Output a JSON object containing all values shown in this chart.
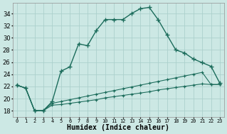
{
  "xlabel": "Humidex (Indice chaleur)",
  "background_color": "#cce8e4",
  "grid_color": "#aacfca",
  "line_color": "#1a6b5a",
  "x_ticks": [
    0,
    1,
    2,
    3,
    4,
    5,
    6,
    7,
    8,
    9,
    10,
    11,
    12,
    13,
    14,
    15,
    16,
    17,
    18,
    19,
    20,
    21,
    22,
    23
  ],
  "y_ticks": [
    18,
    20,
    22,
    24,
    26,
    28,
    30,
    32,
    34
  ],
  "xlim": [
    -0.5,
    23.5
  ],
  "ylim": [
    17.0,
    35.8
  ],
  "line1_y": [
    22.2,
    21.7,
    18.0,
    18.0,
    19.5,
    24.5,
    25.2,
    29.0,
    28.7,
    31.2,
    33.0,
    33.0,
    33.0,
    34.0,
    34.8,
    35.0,
    33.0,
    30.5,
    28.0,
    27.5,
    26.5,
    25.9,
    25.3,
    22.5
  ],
  "line2_y": [
    22.2,
    21.7,
    18.0,
    18.0,
    19.2,
    19.5,
    19.8,
    20.1,
    20.4,
    20.7,
    21.0,
    21.3,
    21.6,
    21.9,
    22.2,
    22.5,
    22.8,
    23.1,
    23.4,
    23.7,
    24.0,
    24.3,
    22.3,
    22.3
  ],
  "line3_y": [
    22.2,
    21.7,
    18.0,
    18.0,
    18.9,
    19.0,
    19.2,
    19.4,
    19.6,
    19.8,
    20.1,
    20.3,
    20.5,
    20.7,
    20.9,
    21.1,
    21.4,
    21.6,
    21.8,
    22.0,
    22.2,
    22.4,
    22.3,
    22.3
  ]
}
